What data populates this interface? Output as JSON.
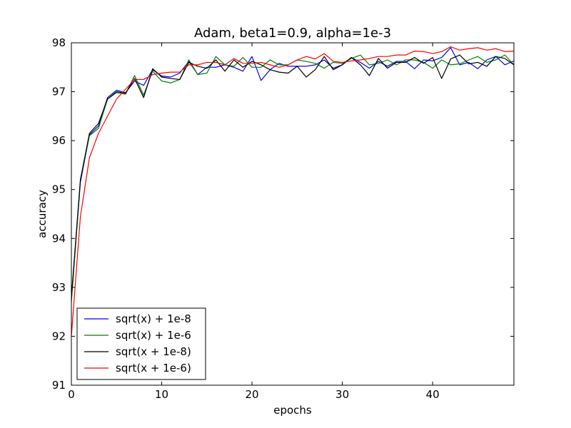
{
  "chart_data": {
    "type": "line",
    "title": "Adam, beta1=0.9, alpha=1e-3",
    "xlabel": "epochs",
    "ylabel": "accuracy",
    "xlim": [
      0,
      49
    ],
    "ylim": [
      91,
      98
    ],
    "xticks": [
      0,
      10,
      20,
      30,
      40
    ],
    "yticks": [
      91,
      92,
      93,
      94,
      95,
      96,
      97,
      98
    ],
    "grid": false,
    "legend_position": "lower-left",
    "x": [
      0,
      1,
      2,
      3,
      4,
      5,
      6,
      7,
      8,
      9,
      10,
      11,
      12,
      13,
      14,
      15,
      16,
      17,
      18,
      19,
      20,
      21,
      22,
      23,
      24,
      25,
      26,
      27,
      28,
      29,
      30,
      31,
      32,
      33,
      34,
      35,
      36,
      37,
      38,
      39,
      40,
      41,
      42,
      43,
      44,
      45,
      46,
      47,
      48,
      49
    ],
    "series": [
      {
        "name": "sqrt(x) + 1e-8",
        "color": "#0000ff",
        "values": [
          92.75,
          95.15,
          96.12,
          96.3,
          96.88,
          97.03,
          96.98,
          97.22,
          97.13,
          97.45,
          97.32,
          97.3,
          97.38,
          97.62,
          97.35,
          97.5,
          97.5,
          97.55,
          97.5,
          97.42,
          97.72,
          97.23,
          97.45,
          97.58,
          97.52,
          97.52,
          97.52,
          97.55,
          97.65,
          97.48,
          97.55,
          97.7,
          97.6,
          97.48,
          97.62,
          97.52,
          97.62,
          97.62,
          97.47,
          97.65,
          97.63,
          97.7,
          97.9,
          97.55,
          97.6,
          97.47,
          97.65,
          97.72,
          97.55,
          97.63
        ]
      },
      {
        "name": "sqrt(x) + 1e-6",
        "color": "#008000",
        "values": [
          92.7,
          95.2,
          96.1,
          96.25,
          96.85,
          96.98,
          96.95,
          97.33,
          96.93,
          97.42,
          97.22,
          97.18,
          97.25,
          97.65,
          97.35,
          97.38,
          97.72,
          97.55,
          97.52,
          97.7,
          97.5,
          97.5,
          97.65,
          97.55,
          97.55,
          97.65,
          97.62,
          97.58,
          97.48,
          97.6,
          97.58,
          97.68,
          97.75,
          97.55,
          97.58,
          97.65,
          97.55,
          97.65,
          97.65,
          97.6,
          97.48,
          97.65,
          97.55,
          97.57,
          97.65,
          97.72,
          97.6,
          97.65,
          97.75,
          97.55
        ]
      },
      {
        "name": "sqrt(x + 1e-8)",
        "color": "#000000",
        "values": [
          92.8,
          95.2,
          96.15,
          96.35,
          96.85,
          97.0,
          96.97,
          97.27,
          96.88,
          97.47,
          97.3,
          97.27,
          97.25,
          97.6,
          97.52,
          97.48,
          97.65,
          97.42,
          97.65,
          97.5,
          97.62,
          97.55,
          97.45,
          97.4,
          97.38,
          97.52,
          97.3,
          97.45,
          97.72,
          97.45,
          97.55,
          97.7,
          97.55,
          97.33,
          97.68,
          97.48,
          97.6,
          97.6,
          97.7,
          97.58,
          97.7,
          97.27,
          97.67,
          97.75,
          97.57,
          97.6,
          97.52,
          97.72,
          97.68,
          97.55
        ]
      },
      {
        "name": "sqrt(x + 1e-6)",
        "color": "#ff0000",
        "values": [
          92.0,
          94.45,
          95.65,
          96.15,
          96.5,
          96.85,
          97.05,
          97.25,
          97.25,
          97.35,
          97.38,
          97.4,
          97.4,
          97.55,
          97.55,
          97.6,
          97.6,
          97.55,
          97.68,
          97.58,
          97.58,
          97.6,
          97.55,
          97.5,
          97.55,
          97.65,
          97.72,
          97.67,
          97.78,
          97.62,
          97.6,
          97.63,
          97.65,
          97.68,
          97.72,
          97.72,
          97.75,
          97.75,
          97.83,
          97.82,
          97.78,
          97.82,
          97.92,
          97.85,
          97.88,
          97.9,
          97.85,
          97.88,
          97.82,
          97.83
        ]
      }
    ]
  }
}
